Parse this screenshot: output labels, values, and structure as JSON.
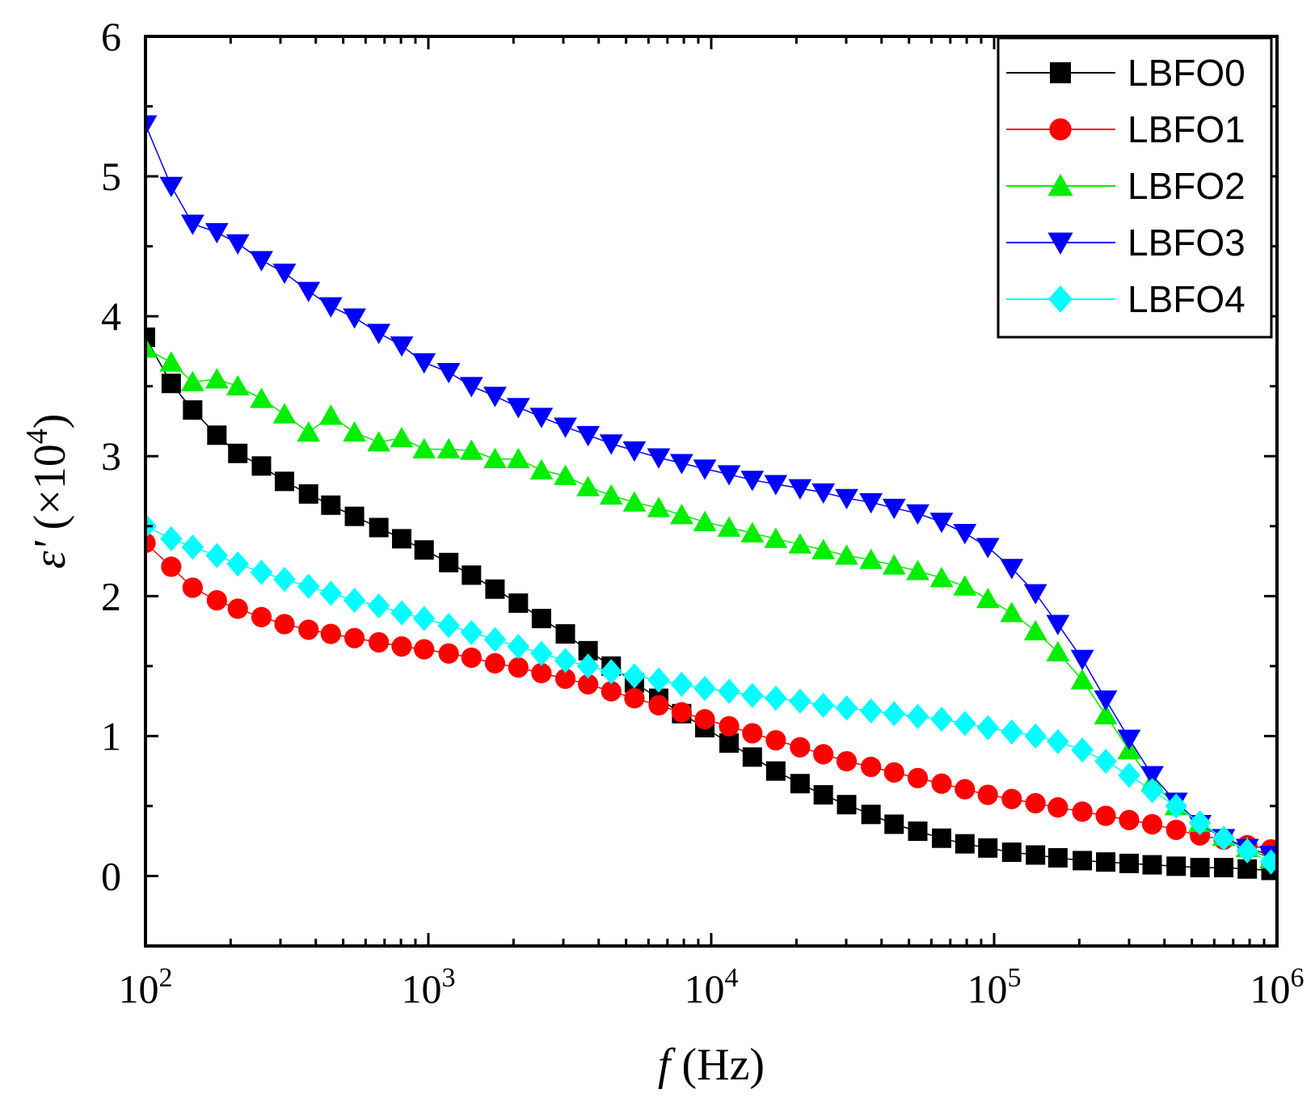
{
  "chart_data": {
    "type": "scatter",
    "xscale": "log",
    "xlim": [
      100,
      1000000
    ],
    "ylim": [
      -0.5,
      6
    ],
    "x_ticks": [
      {
        "value": 100,
        "base": "10",
        "exp": "2"
      },
      {
        "value": 1000,
        "base": "10",
        "exp": "3"
      },
      {
        "value": 10000,
        "base": "10",
        "exp": "4"
      },
      {
        "value": 100000,
        "base": "10",
        "exp": "5"
      },
      {
        "value": 1000000,
        "base": "10",
        "exp": "6"
      }
    ],
    "y_ticks": [
      {
        "value": 0,
        "label": "0"
      },
      {
        "value": 1,
        "label": "1"
      },
      {
        "value": 2,
        "label": "2"
      },
      {
        "value": 3,
        "label": "3"
      },
      {
        "value": 4,
        "label": "4"
      },
      {
        "value": 5,
        "label": "5"
      },
      {
        "value": 6,
        "label": "6"
      }
    ],
    "xlabel": {
      "italic": "f",
      "rest": " (Hz)"
    },
    "ylabel": {
      "italic": "ε'",
      "rest": " (×10",
      "sup": "4",
      "close": ")"
    },
    "legend_position": "top-right",
    "grid": false,
    "x": [
      100,
      123.3,
      146.8,
      178.8,
      212.0,
      257.0,
      310.0,
      377.0,
      452.0,
      548.0,
      668.0,
      805.0,
      966.0,
      1180.0,
      1420.0,
      1720.0,
      2080.0,
      2510.0,
      3050.0,
      3670.0,
      4430.0,
      5350.0,
      6520.0,
      7860.0,
      9490.0,
      11560.0,
      13970.0,
      16910.0,
      20600.0,
      24900.0,
      30100.0,
      36700.0,
      44300.0,
      53700.0,
      65200.0,
      78800.0,
      95000.0,
      115400.0,
      140000.0,
      168000.0,
      205000.0,
      248000.0,
      300000.0,
      362000.0,
      440000.0,
      534000.0,
      648000.0,
      785000.0,
      952000.0
    ],
    "series": [
      {
        "name": "LBFO0",
        "marker": "square",
        "color": "#000000",
        "values": [
          3.85,
          3.52,
          3.33,
          3.15,
          3.02,
          2.93,
          2.82,
          2.73,
          2.65,
          2.57,
          2.49,
          2.41,
          2.33,
          2.24,
          2.15,
          2.05,
          1.95,
          1.84,
          1.73,
          1.61,
          1.5,
          1.38,
          1.27,
          1.16,
          1.06,
          0.95,
          0.85,
          0.75,
          0.66,
          0.58,
          0.51,
          0.44,
          0.37,
          0.32,
          0.27,
          0.23,
          0.2,
          0.17,
          0.15,
          0.13,
          0.11,
          0.1,
          0.09,
          0.08,
          0.07,
          0.06,
          0.06,
          0.05,
          0.04
        ]
      },
      {
        "name": "LBFO1",
        "marker": "circle",
        "color": "#ff0000",
        "values": [
          2.38,
          2.21,
          2.06,
          1.97,
          1.91,
          1.85,
          1.8,
          1.76,
          1.73,
          1.7,
          1.67,
          1.64,
          1.62,
          1.59,
          1.56,
          1.52,
          1.49,
          1.45,
          1.41,
          1.37,
          1.32,
          1.27,
          1.22,
          1.17,
          1.12,
          1.07,
          1.02,
          0.97,
          0.92,
          0.87,
          0.82,
          0.78,
          0.74,
          0.7,
          0.66,
          0.62,
          0.58,
          0.55,
          0.52,
          0.49,
          0.46,
          0.43,
          0.4,
          0.37,
          0.33,
          0.29,
          0.26,
          0.22,
          0.19
        ]
      },
      {
        "name": "LBFO2",
        "marker": "triangle-up",
        "color": "#00ee00",
        "values": [
          3.77,
          3.67,
          3.53,
          3.55,
          3.5,
          3.41,
          3.3,
          3.17,
          3.29,
          3.17,
          3.1,
          3.13,
          3.05,
          3.05,
          3.04,
          2.98,
          2.98,
          2.9,
          2.86,
          2.78,
          2.72,
          2.67,
          2.63,
          2.58,
          2.53,
          2.49,
          2.45,
          2.41,
          2.37,
          2.33,
          2.29,
          2.26,
          2.22,
          2.18,
          2.13,
          2.07,
          1.98,
          1.88,
          1.75,
          1.6,
          1.4,
          1.15,
          0.9,
          0.67,
          0.5,
          0.38,
          0.28,
          0.2,
          0.12
        ]
      },
      {
        "name": "LBFO3",
        "marker": "triangle-down",
        "color": "#0000ff",
        "values": [
          5.37,
          4.93,
          4.66,
          4.6,
          4.52,
          4.4,
          4.31,
          4.18,
          4.07,
          3.99,
          3.88,
          3.79,
          3.67,
          3.6,
          3.5,
          3.43,
          3.35,
          3.28,
          3.21,
          3.15,
          3.09,
          3.04,
          2.99,
          2.95,
          2.91,
          2.87,
          2.83,
          2.8,
          2.77,
          2.74,
          2.7,
          2.67,
          2.63,
          2.59,
          2.53,
          2.45,
          2.35,
          2.2,
          2.02,
          1.8,
          1.55,
          1.26,
          0.98,
          0.72,
          0.53,
          0.37,
          0.27,
          0.2,
          0.15
        ]
      },
      {
        "name": "LBFO4",
        "marker": "diamond",
        "color": "#00ffff",
        "values": [
          2.5,
          2.41,
          2.35,
          2.29,
          2.23,
          2.17,
          2.12,
          2.07,
          2.02,
          1.97,
          1.93,
          1.88,
          1.84,
          1.79,
          1.74,
          1.69,
          1.64,
          1.59,
          1.54,
          1.5,
          1.46,
          1.43,
          1.4,
          1.37,
          1.34,
          1.32,
          1.29,
          1.27,
          1.25,
          1.22,
          1.2,
          1.18,
          1.16,
          1.14,
          1.12,
          1.09,
          1.06,
          1.03,
          1.0,
          0.96,
          0.9,
          0.82,
          0.72,
          0.61,
          0.5,
          0.38,
          0.27,
          0.18,
          0.1
        ]
      }
    ]
  }
}
